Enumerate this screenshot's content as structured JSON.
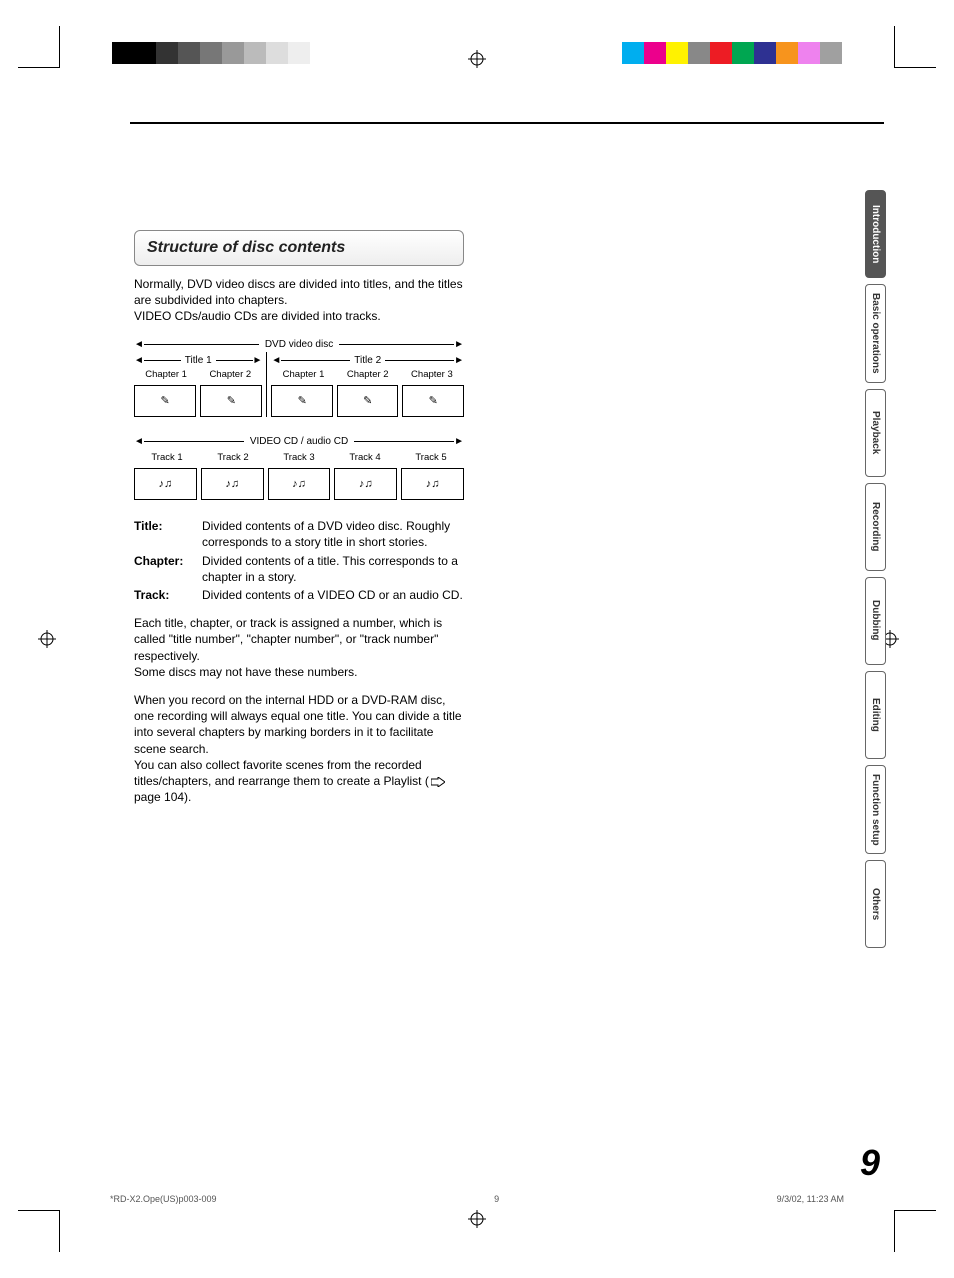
{
  "print_marks": {
    "bw_shades": [
      "#000000",
      "#000000",
      "#333333",
      "#555555",
      "#777777",
      "#999999",
      "#bbbbbb",
      "#dddddd",
      "#eeeeee",
      "#ffffff"
    ],
    "color_swatches": [
      "#00aeef",
      "#ec008c",
      "#fff200",
      "#888888",
      "#ed1c24",
      "#00a651",
      "#2e3192",
      "#f7941d",
      "#ee82ee",
      "#a0a0a0"
    ]
  },
  "heading": "Structure of disc contents",
  "intro_p1": "Normally, DVD video discs are divided into titles, and the titles are subdivided into chapters.",
  "intro_p2": "VIDEO CDs/audio CDs are divided into tracks.",
  "diagram_dvd": {
    "label": "DVD video disc",
    "title1": "Title 1",
    "title2": "Title 2",
    "t1_chapters": [
      "Chapter 1",
      "Chapter 2"
    ],
    "t2_chapters": [
      "Chapter 1",
      "Chapter 2",
      "Chapter 3"
    ]
  },
  "diagram_cd": {
    "label": "VIDEO CD / audio CD",
    "tracks": [
      "Track 1",
      "Track 2",
      "Track 3",
      "Track 4",
      "Track 5"
    ]
  },
  "definitions": [
    {
      "term": "Title:",
      "desc": "Divided contents of a DVD video disc. Roughly corresponds to a story title in short stories."
    },
    {
      "term": "Chapter:",
      "desc": "Divided contents of a title. This corresponds to a chapter in a story."
    },
    {
      "term": "Track:",
      "desc": "Divided contents of a VIDEO CD or an audio CD."
    }
  ],
  "para1": "Each title, chapter, or track is assigned a number, which is called \"title number\", \"chapter number\", or \"track number\" respectively.",
  "para1b": "Some discs may not have these numbers.",
  "para2": "When you record on the internal HDD or a DVD-RAM disc, one recording will always equal one title. You can divide a title into several chapters by marking borders in it to facilitate scene search.",
  "para2b_prefix": "You can also collect favorite scenes from the recorded titles/chapters, and rearrange them to create a Playlist (",
  "para2b_page": " page 104).",
  "tabs": [
    "Introduction",
    "Basic operations",
    "Playback",
    "Recording",
    "Dubbing",
    "Editing",
    "Function setup",
    "Others"
  ],
  "active_tab": 0,
  "page_number": "9",
  "footer": {
    "left": "*RD-X2.Ope(US)p003-009",
    "mid": "9",
    "right": "9/3/02, 11:23 AM"
  }
}
